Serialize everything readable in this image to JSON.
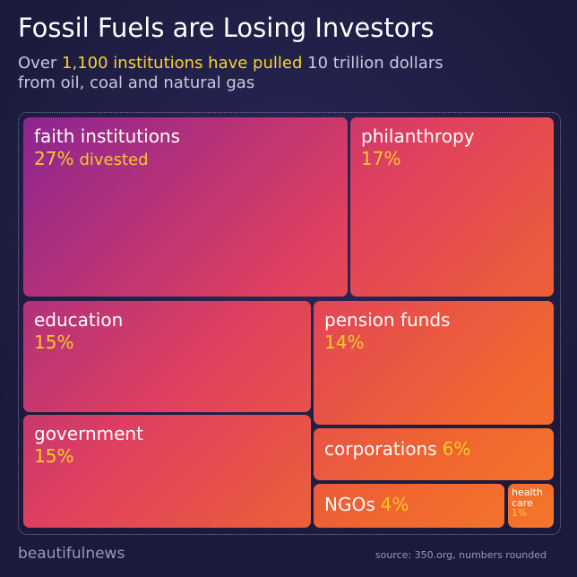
{
  "chart_data": {
    "type": "treemap",
    "title": "Fossil Fuels are Losing Investors",
    "subtitle": [
      "Over",
      "1,100 institutions have pulled",
      "10 trillion dollars",
      "from oil, coal and natural gas"
    ],
    "categories": [
      "faith institutions",
      "philanthropy",
      "education",
      "pension funds",
      "government",
      "corporations",
      "NGOs",
      "health care"
    ],
    "values": [
      27,
      17,
      15,
      14,
      15,
      6,
      4,
      1
    ],
    "value_labels": [
      "27%",
      "17%",
      "15%",
      "14%",
      "15%",
      "6%",
      "4%",
      "1%"
    ],
    "annotation": "divested",
    "brand": "beautifulnews",
    "source": "source: 350.org, numbers rounded"
  }
}
